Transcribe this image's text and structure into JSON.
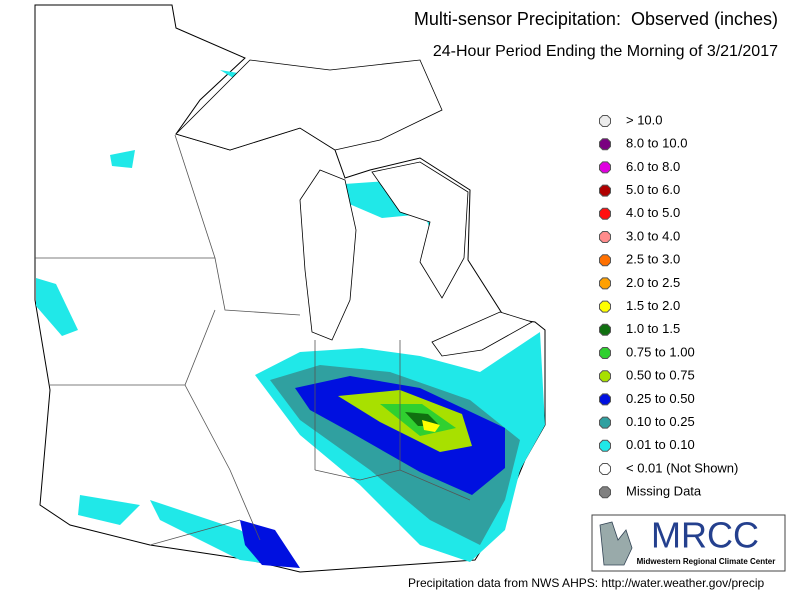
{
  "header": {
    "title": "Multi-sensor Precipitation:  Observed (inches)",
    "subtitle": "24-Hour Period Ending the Morning of 3/21/2017"
  },
  "legend": {
    "items": [
      {
        "label": "> 10.0",
        "color": "#ececec"
      },
      {
        "label": "8.0 to 10.0",
        "color": "#7a0080"
      },
      {
        "label": "6.0 to 8.0",
        "color": "#e000e0"
      },
      {
        "label": "5.0 to 6.0",
        "color": "#b00000"
      },
      {
        "label": "4.0 to 5.0",
        "color": "#ff1010"
      },
      {
        "label": "3.0 to 4.0",
        "color": "#ff8c8c"
      },
      {
        "label": "2.5 to 3.0",
        "color": "#ff7000"
      },
      {
        "label": "2.0 to 2.5",
        "color": "#ffa000"
      },
      {
        "label": "1.5 to 2.0",
        "color": "#ffff00"
      },
      {
        "label": "1.0 to 1.5",
        "color": "#107010"
      },
      {
        "label": "0.75 to 1.00",
        "color": "#30d030"
      },
      {
        "label": "0.50 to 0.75",
        "color": "#a8e000"
      },
      {
        "label": "0.25 to 0.50",
        "color": "#0010e0"
      },
      {
        "label": "0.10 to 0.25",
        "color": "#30a0a0"
      },
      {
        "label": "0.01 to 0.10",
        "color": "#20e8e8"
      },
      {
        "label": "< 0.01 (Not Shown)",
        "color": "#ffffff"
      },
      {
        "label": "Missing Data",
        "color": "#808080"
      }
    ]
  },
  "logo": {
    "name": "MRCC",
    "full_name": "Midwestern Regional Climate Center"
  },
  "footer": {
    "credit": "Precipitation data from NWS AHPS: http://water.weather.gov/precip"
  }
}
